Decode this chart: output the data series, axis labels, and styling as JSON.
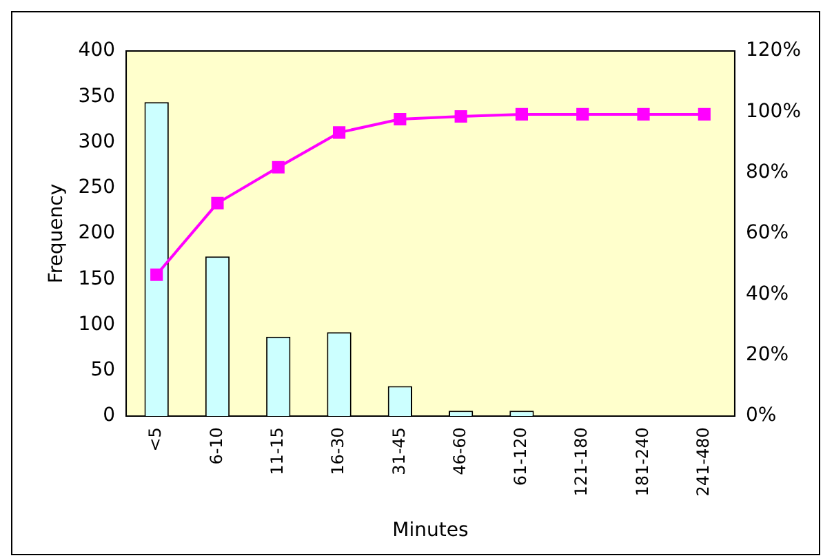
{
  "chart_data": {
    "type": "bar",
    "xlabel": "Minutes",
    "ylabel": "Frequency",
    "categories": [
      "<5",
      "6-10",
      "11-15",
      "16-30",
      "31-45",
      "46-60",
      "61-120",
      "121-180",
      "181-240",
      "241-480"
    ],
    "series": [
      {
        "color": "#ccffff",
        "values": [
          344,
          175,
          87,
          92,
          33,
          6,
          6,
          0,
          0,
          0
        ]
      },
      {
        "type": "line",
        "axis": "y2",
        "color": "#ff00ff",
        "marker": "square",
        "values": [
          46.5,
          70,
          81.8,
          93.2,
          97.6,
          98.5,
          99.2,
          99.2,
          99.2,
          99.2
        ]
      }
    ],
    "ylim": [
      0,
      400
    ],
    "yticks": [
      0,
      50,
      100,
      150,
      200,
      250,
      300,
      350,
      400
    ],
    "y2lim": [
      0,
      120
    ],
    "y2ticks": [
      {
        "value": 0,
        "label": "0%"
      },
      {
        "value": 20,
        "label": "20%"
      },
      {
        "value": 40,
        "label": "40%"
      },
      {
        "value": 60,
        "label": "60%"
      },
      {
        "value": 80,
        "label": "80%"
      },
      {
        "value": 100,
        "label": "100%"
      },
      {
        "value": 120,
        "label": "120%"
      }
    ],
    "grid": false,
    "legend": false
  }
}
